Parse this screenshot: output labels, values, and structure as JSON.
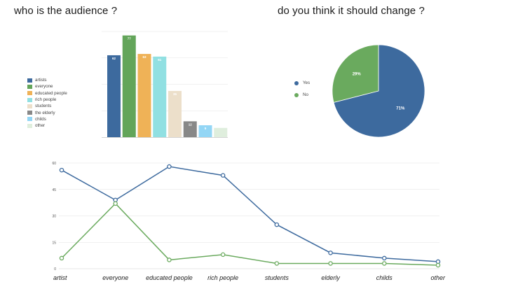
{
  "titles": {
    "audience": "who is the audience ?",
    "change": "do you think it should change ?"
  },
  "chart_data": [
    {
      "type": "bar",
      "title": "who is the audience ?",
      "categories": [
        "artists",
        "everyone",
        "educated people",
        "rich people",
        "students",
        "the elderly",
        "childs",
        "other"
      ],
      "values": [
        62,
        77,
        63,
        61,
        35,
        12,
        9,
        7
      ],
      "value_labels": [
        "62",
        "77",
        "63",
        "61",
        "35",
        "12",
        "9",
        ""
      ],
      "colors": [
        "#3d6a9e",
        "#63a55a",
        "#efb257",
        "#91e0e2",
        "#ecdfca",
        "#888888",
        "#93d6f5",
        "#dfeedd"
      ],
      "ylim": [
        0,
        80
      ],
      "grid": true,
      "legend": "left"
    },
    {
      "type": "pie",
      "title": "do you think it should change ?",
      "labels": [
        "Yes",
        "No"
      ],
      "values": [
        71,
        29
      ],
      "value_labels": [
        "71%",
        "29%"
      ],
      "colors": [
        "#3d6a9e",
        "#6aaa5e"
      ],
      "legend": "left"
    },
    {
      "type": "line",
      "categories": [
        "artist",
        "everyone",
        "educated people",
        "rich people",
        "students",
        "elderly",
        "childs",
        "other"
      ],
      "series": [
        {
          "color": "#3d6a9e",
          "values": [
            56,
            39,
            58,
            53,
            25,
            9,
            6,
            4
          ]
        },
        {
          "color": "#6aaa5e",
          "values": [
            6,
            37,
            5,
            8,
            3,
            3,
            3,
            2
          ]
        }
      ],
      "yticks": [
        0,
        15,
        30,
        45,
        60
      ],
      "ylim": [
        0,
        60
      ],
      "grid": true
    }
  ]
}
